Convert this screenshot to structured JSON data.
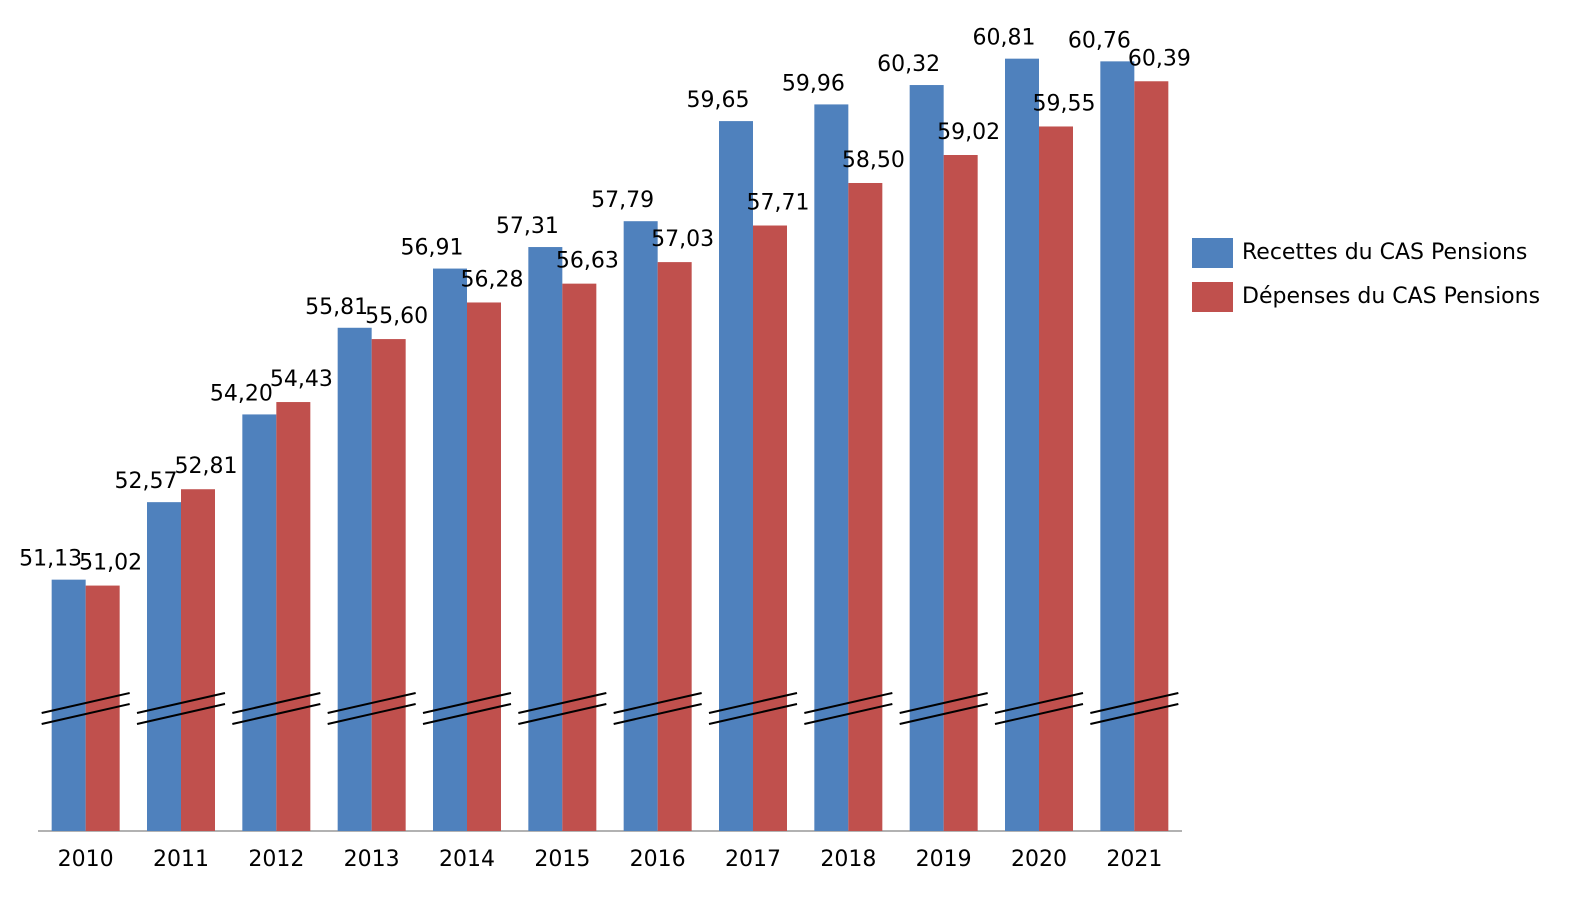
{
  "chart_data": {
    "type": "bar",
    "categories": [
      "2010",
      "2011",
      "2012",
      "2013",
      "2014",
      "2015",
      "2016",
      "2017",
      "2018",
      "2019",
      "2020",
      "2021"
    ],
    "series": [
      {
        "name": "Recettes du CAS Pensions",
        "color": "#4f81bd",
        "values": [
          51.13,
          52.57,
          54.2,
          55.81,
          56.91,
          57.31,
          57.79,
          59.65,
          59.96,
          60.32,
          60.81,
          60.76
        ],
        "value_labels": [
          "51,13",
          "52,57",
          "54,20",
          "55,81",
          "56,91",
          "57,31",
          "57,79",
          "59,65",
          "59,96",
          "60,32",
          "60,81",
          "60,76"
        ]
      },
      {
        "name": "Dépenses du CAS Pensions",
        "color": "#c0504d",
        "values": [
          51.02,
          52.81,
          54.43,
          55.6,
          56.28,
          56.63,
          57.03,
          57.71,
          58.5,
          59.02,
          59.55,
          60.39
        ],
        "value_labels": [
          "51,02",
          "52,81",
          "54,43",
          "55,60",
          "56,28",
          "56,63",
          "57,03",
          "57,71",
          "58,50",
          "59,02",
          "59,55",
          "60,39"
        ]
      }
    ],
    "ylim": [
      46.46,
      61.9
    ],
    "legend": "right"
  }
}
